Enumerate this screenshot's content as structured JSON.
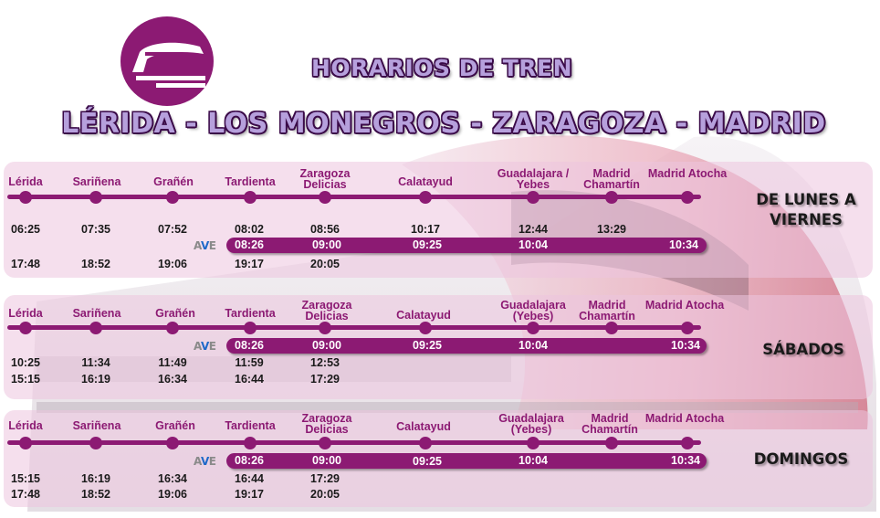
{
  "header": {
    "title": "HORARIOS DE TREN",
    "route": "LÉRIDA - LOS MONEGROS - ZARAGOZA - MADRID"
  },
  "colors": {
    "accent": "#8c1a73",
    "panel": "#ecc4de",
    "ave_blue": "#1f69c9"
  },
  "ave_logo": {
    "a": "A",
    "v": "V",
    "e": "E"
  },
  "weekday": {
    "label": "DE LUNES A VIERNES",
    "stations": [
      "Lérida",
      "Sariñena",
      "Grañén",
      "Tardienta",
      "Zaragoza Delicias",
      "Calatayud",
      "Guadalajara / Yebes",
      "Madrid Chamartín",
      "Madrid Atocha"
    ],
    "row1": [
      "06:25",
      "07:35",
      "07:52",
      "08:02",
      "08:56",
      "10:17",
      "12:44",
      "13:29"
    ],
    "ave": [
      "08:26",
      "09:00",
      "09:25",
      "10:04",
      "10:34"
    ],
    "row2": [
      "17:48",
      "18:52",
      "19:06",
      "19:17",
      "20:05"
    ]
  },
  "saturday": {
    "label": "SÁBADOS",
    "stations": [
      "Lérida",
      "Sariñena",
      "Grañén",
      "Tardienta",
      "Zaragoza Delicias",
      "Calatayud",
      "Guadalajara (Yebes)",
      "Madrid Chamartín",
      "Madrid Atocha"
    ],
    "ave": [
      "08:26",
      "09:00",
      "09:25",
      "10:04",
      "10:34"
    ],
    "row1": [
      "10:25",
      "11:34",
      "11:49",
      "11:59",
      "12:53"
    ],
    "row2": [
      "15:15",
      "16:19",
      "16:34",
      "16:44",
      "17:29"
    ]
  },
  "sunday": {
    "label": "DOMINGOS",
    "stations": [
      "Lérida",
      "Sariñena",
      "Grañén",
      "Tardienta",
      "Zaragoza Delicias",
      "Calatayud",
      "Guadalajara (Yebes)",
      "Madrid Chamartín",
      "Madrid Atocha"
    ],
    "ave": [
      "08:26",
      "09:00",
      "09:25",
      "10:04",
      "10:34"
    ],
    "row1": [
      "15:15",
      "16:19",
      "16:34",
      "16:44",
      "17:29"
    ],
    "row2": [
      "17:48",
      "18:52",
      "19:06",
      "19:17",
      "20:05"
    ]
  }
}
